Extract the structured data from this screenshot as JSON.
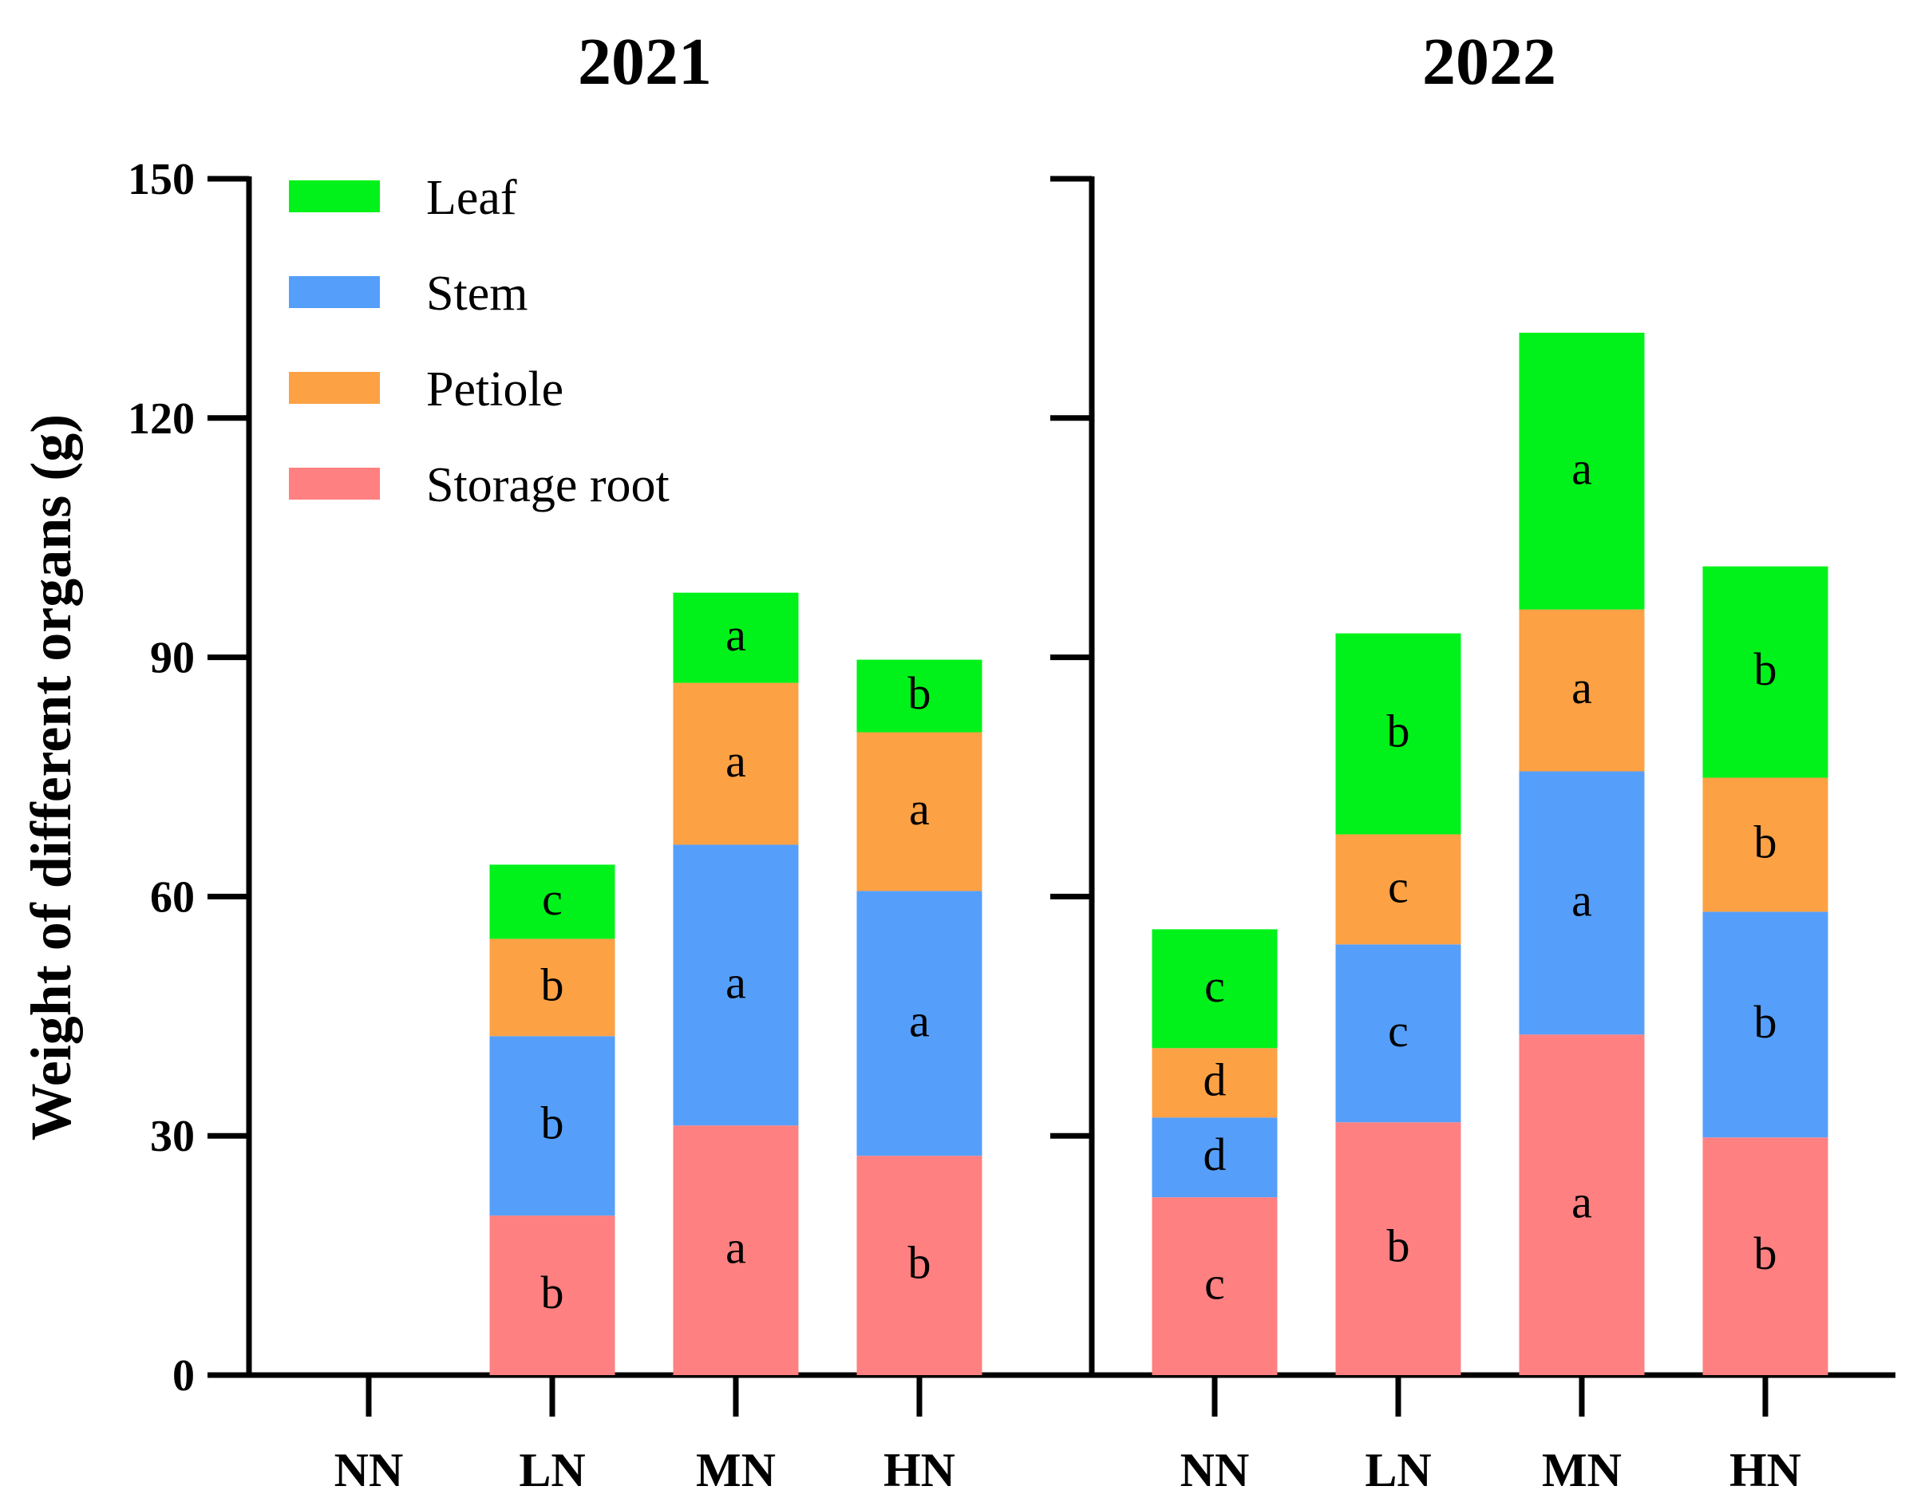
{
  "chart_data": {
    "type": "bar",
    "stacked": true,
    "ylabel": "Weight of different organs (g)",
    "ylim": [
      0,
      150
    ],
    "yticks": [
      0,
      30,
      60,
      90,
      120,
      150
    ],
    "legend_position": "top-left",
    "series_order": [
      "Storage root",
      "Petiole",
      "Stem",
      "Leaf"
    ],
    "legend_order": [
      "Leaf",
      "Stem",
      "Petiole",
      "Storage root"
    ],
    "colors": {
      "Leaf": "#00f21a",
      "Stem": "#559ffb",
      "Petiole": "#fca144",
      "Storage root": "#ff8080"
    },
    "panels": [
      {
        "title": "2021",
        "categories": [
          "NN",
          "LN",
          "MN",
          "HN"
        ],
        "series": [
          {
            "name": "Storage root",
            "values": [
              null,
              20,
              31.3,
              27.5
            ],
            "letters": [
              "",
              "b",
              "a",
              "b"
            ]
          },
          {
            "name": "Stem",
            "values": [
              null,
              22.5,
              35.2,
              33.2
            ],
            "letters": [
              "",
              "b",
              "a",
              "a"
            ]
          },
          {
            "name": "Petiole",
            "values": [
              null,
              12.2,
              20.3,
              19.9
            ],
            "letters": [
              "",
              "b",
              "a",
              "a"
            ]
          },
          {
            "name": "Leaf",
            "values": [
              null,
              9.3,
              11.3,
              9.1
            ],
            "letters": [
              "",
              "c",
              "a",
              "b"
            ]
          }
        ]
      },
      {
        "title": "2022",
        "categories": [
          "NN",
          "LN",
          "MN",
          "HN"
        ],
        "series": [
          {
            "name": "Storage root",
            "values": [
              22.3,
              31.7,
              42.7,
              29.8
            ],
            "letters": [
              "c",
              "b",
              "a",
              "b"
            ]
          },
          {
            "name": "Stem",
            "values": [
              10,
              22.3,
              33,
              28.3
            ],
            "letters": [
              "d",
              "c",
              "a",
              "b"
            ]
          },
          {
            "name": "Petiole",
            "values": [
              8.7,
              13.8,
              20.3,
              16.8
            ],
            "letters": [
              "d",
              "c",
              "a",
              "b"
            ]
          },
          {
            "name": "Leaf",
            "values": [
              14.9,
              25.2,
              34.7,
              26.5
            ],
            "letters": [
              "c",
              "b",
              "a",
              "b"
            ]
          }
        ]
      }
    ]
  }
}
